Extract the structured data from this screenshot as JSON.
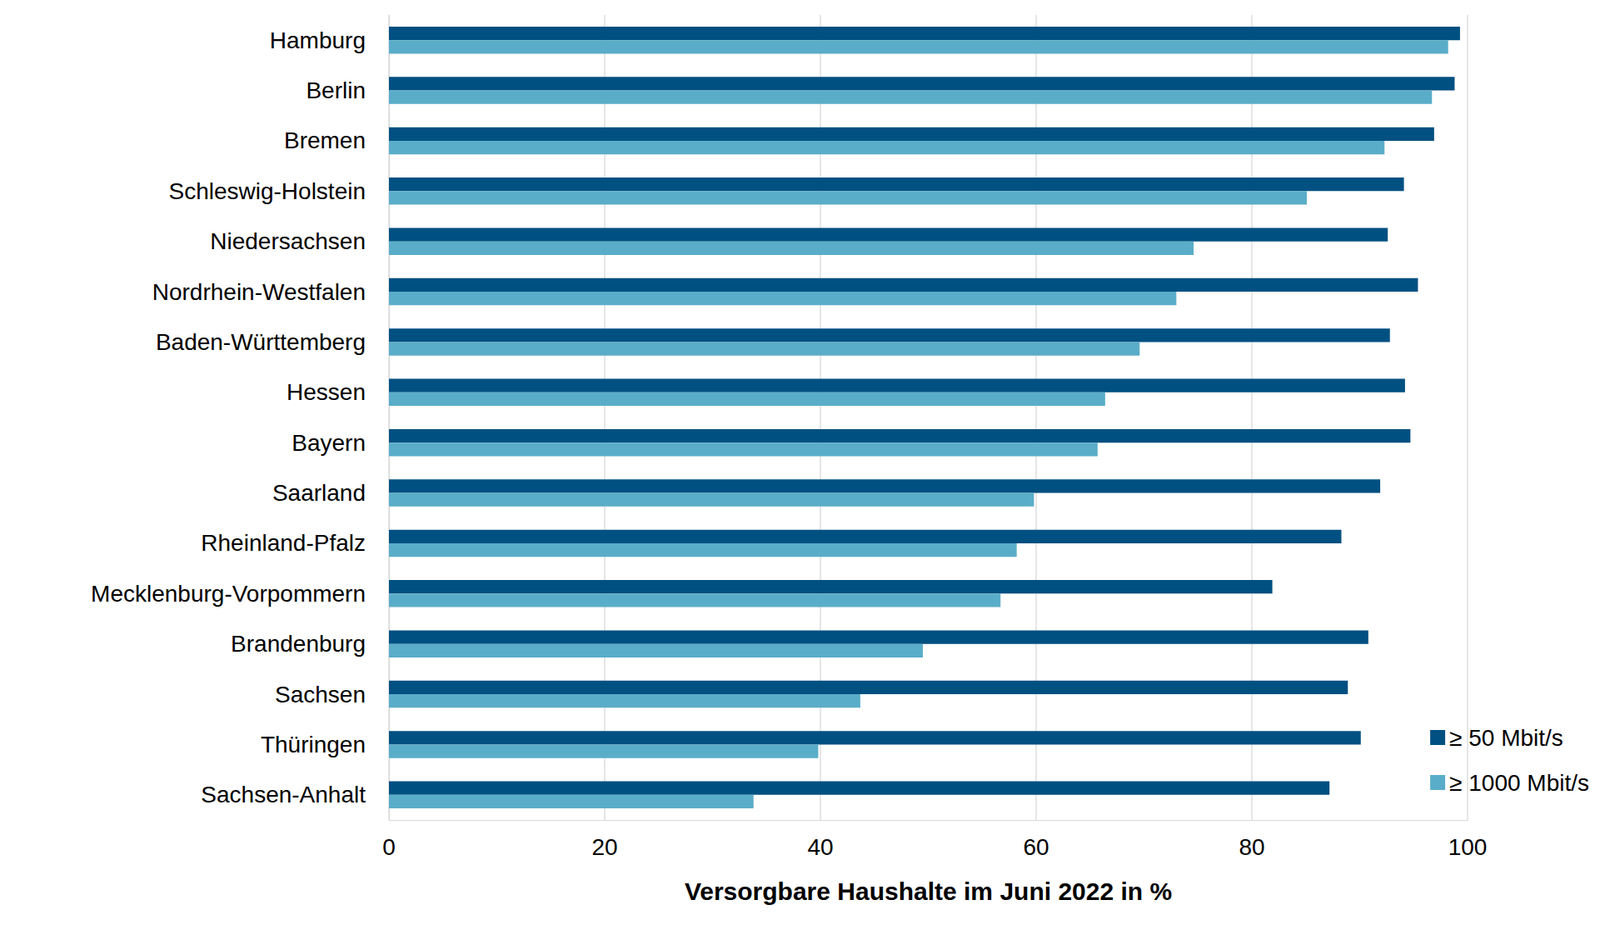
{
  "chart_data": {
    "type": "bar",
    "orientation": "horizontal",
    "x_label": "Versorgbare Haushalte im Juni 2022 in %",
    "categories": [
      "Hamburg",
      "Berlin",
      "Bremen",
      "Schleswig-Holstein",
      "Niedersachsen",
      "Nordrhein-Westfalen",
      "Baden-Württemberg",
      "Hessen",
      "Bayern",
      "Saarland",
      "Rheinland-Pfalz",
      "Mecklenburg-Vorpommern",
      "Brandenburg",
      "Sachsen",
      "Thüringen",
      "Sachsen-Anhalt"
    ],
    "series": [
      {
        "name": "≥ 50 Mbit/s",
        "color": "#005082",
        "values": [
          99.3,
          98.8,
          96.9,
          94.1,
          92.6,
          95.4,
          92.8,
          94.2,
          94.7,
          91.9,
          88.3,
          81.9,
          90.8,
          88.9,
          90.1,
          87.2
        ]
      },
      {
        "name": "≥ 1000 Mbit/s",
        "color": "#5aadc8",
        "values": [
          98.2,
          96.7,
          92.3,
          85.1,
          74.6,
          73.0,
          69.6,
          66.4,
          65.7,
          59.8,
          58.2,
          56.7,
          49.5,
          43.7,
          39.8,
          33.8
        ]
      }
    ],
    "xlim": [
      0,
      100
    ],
    "xticks": [
      0,
      20,
      40,
      60,
      80,
      100
    ],
    "grid": true,
    "legend": "lower right"
  }
}
